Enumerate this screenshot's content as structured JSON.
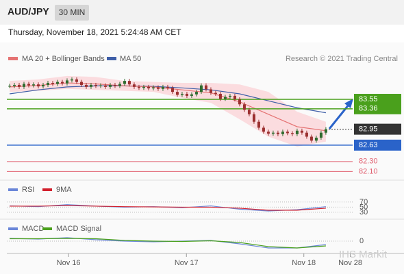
{
  "header": {
    "symbol": "AUD/JPY",
    "interval": "30 MIN",
    "timestamp": "Thursday, November 18, 2021 5:24:48 AM CET"
  },
  "chart_data": {
    "type": "candlestick",
    "legend": {
      "ma20": "MA 20 + Bollinger Bands",
      "ma50": "MA 50",
      "source": "Research © 2021 Trading Central"
    },
    "watermark": "IHS Markit",
    "xlim": [
      -2,
      82.3
    ],
    "xticks": [
      {
        "value": 12.3,
        "label": "Nov 16"
      },
      {
        "value": 36.9,
        "label": "Nov 17"
      },
      {
        "value": 61.4,
        "label": "Nov 18"
      },
      {
        "value": 71.1,
        "label": "Nov 28"
      }
    ],
    "ylim": [
      81.94,
      84.61
    ],
    "candles": {
      "up_color": "#2e6b2e",
      "down_color": "#9b2f2f",
      "close": [
        83.82,
        83.84,
        83.8,
        83.86,
        83.83,
        83.85,
        83.81,
        83.84,
        83.88,
        83.86,
        83.9,
        83.87,
        83.93,
        83.95,
        83.9,
        83.84,
        83.8,
        83.84,
        83.82,
        83.83,
        83.8,
        83.84,
        83.82,
        83.86,
        83.92,
        83.85,
        83.8,
        83.78,
        83.8,
        83.77,
        83.79,
        83.76,
        83.8,
        83.78,
        83.7,
        83.64,
        83.66,
        83.62,
        83.65,
        83.7,
        83.83,
        83.75,
        83.68,
        83.66,
        83.56,
        83.6,
        83.62,
        83.55,
        83.45,
        83.34,
        83.25,
        83.1,
        82.98,
        82.9,
        82.86,
        82.88,
        82.85,
        82.9,
        82.87,
        82.85,
        82.92,
        82.88,
        82.8,
        82.72,
        82.78,
        82.88,
        82.95
      ]
    },
    "indicators": {
      "x": [
        0,
        6,
        12,
        18,
        24,
        30,
        36,
        42,
        48,
        54,
        60,
        66
      ],
      "ma20": {
        "color": "#e57373",
        "values": [
          83.8,
          83.83,
          83.88,
          83.86,
          83.82,
          83.8,
          83.74,
          83.68,
          83.5,
          83.25,
          83.0,
          82.92
        ]
      },
      "ma50": {
        "color": "#3f5fa8",
        "values": [
          83.66,
          83.74,
          83.8,
          83.82,
          83.82,
          83.81,
          83.78,
          83.74,
          83.66,
          83.52,
          83.38,
          83.28
        ]
      },
      "bollinger": {
        "color": "#fbd5d8",
        "upper": [
          83.92,
          83.95,
          84.02,
          84.0,
          83.92,
          83.9,
          83.88,
          83.88,
          83.85,
          83.7,
          83.3,
          83.1
        ],
        "lower": [
          83.7,
          83.72,
          83.76,
          83.74,
          83.72,
          83.7,
          83.58,
          83.48,
          83.15,
          82.8,
          82.6,
          82.7
        ]
      }
    },
    "levels": [
      {
        "value": 83.55,
        "label": "83.55",
        "color": "#4aa01c"
      },
      {
        "value": 83.36,
        "label": "83.36",
        "color": "#4aa01c"
      },
      {
        "value": 82.95,
        "label": "82.95",
        "color": "#333333"
      },
      {
        "value": 82.63,
        "label": "82.63",
        "color": "#2a63c9"
      },
      {
        "value": 82.3,
        "label": "82.30",
        "color": "#e06070"
      },
      {
        "value": 82.1,
        "label": "82.10",
        "color": "#e06070"
      }
    ],
    "rsi": {
      "legend": [
        "RSI",
        "9MA"
      ],
      "ylim": [
        3,
        142
      ],
      "yticks": [
        70,
        50,
        30
      ],
      "rsi": {
        "color": "#6a86d8",
        "values": [
          55,
          52,
          60,
          54,
          50,
          52,
          48,
          55,
          42,
          35,
          40,
          52
        ]
      },
      "ma9": {
        "color": "#d21f2c",
        "values": [
          54,
          54,
          56,
          54,
          52,
          51,
          50,
          50,
          46,
          38,
          38,
          46
        ]
      }
    },
    "macd": {
      "legend": [
        "MACD",
        "MACD Signal"
      ],
      "ylim": [
        -0.2,
        0.27
      ],
      "yticks": [
        0
      ],
      "macd": {
        "color": "#6a86d8",
        "values": [
          0.04,
          0.03,
          0.05,
          0.02,
          0.0,
          -0.01,
          0.0,
          0.01,
          -0.04,
          -0.1,
          -0.1,
          -0.05
        ]
      },
      "signal": {
        "color": "#4aa01c",
        "values": [
          0.035,
          0.035,
          0.04,
          0.035,
          0.01,
          0.0,
          -0.005,
          0.005,
          -0.02,
          -0.08,
          -0.1,
          -0.07
        ]
      }
    }
  }
}
